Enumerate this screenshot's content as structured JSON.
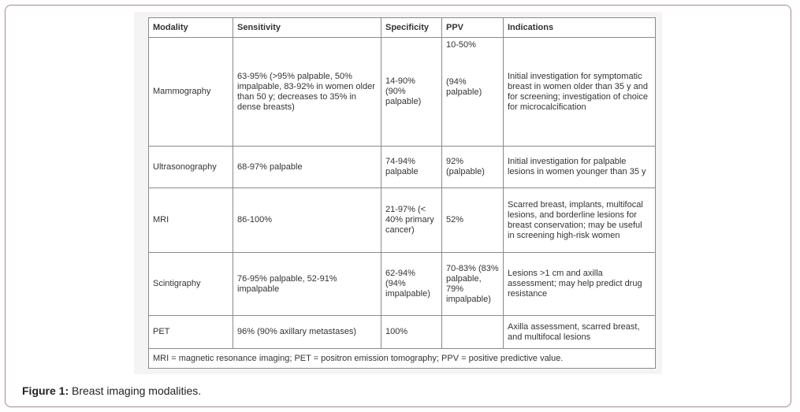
{
  "table": {
    "header": [
      "Modality",
      "Sensitivity",
      "Specificity",
      "PPV",
      "Indications"
    ],
    "rows": [
      [
        "Mammography",
        "63-95% (>95% palpable, 50% impalpable, 83-92% in women older than 50 y; decreases to 35% in dense breasts)",
        "14-90% (90% palpable)",
        [
          "10-50%",
          "(94% palpable)"
        ],
        "Initial investigation for symptomatic breast in women older than 35 y and for screening; investigation of choice for microcalcification"
      ],
      [
        "Ultrasonography",
        "68-97% palpable",
        "74-94% palpable",
        "92% (palpable)",
        "Initial investigation for palpable lesions in women younger than 35 y"
      ],
      [
        "MRI",
        "86-100%",
        "21-97% (< 40% primary cancer)",
        "52%",
        "Scarred breast, implants, multifocal lesions, and borderline lesions for breast conservation; may be useful in screening high-risk women"
      ],
      [
        "Scintigraphy",
        "76-95% palpable, 52-91% impalpable",
        "62-94% (94% impalpable)",
        "70-83% (83% palpable, 79% impalpable)",
        "Lesions >1 cm and axilla assessment; may help predict drug resistance"
      ],
      [
        "PET",
        "96% (90% axillary metastases)",
        "100%",
        "",
        "Axilla assessment, scarred breast, and multifocal lesions"
      ]
    ],
    "footnote": "MRI = magnetic resonance imaging; PET = positron emission tomography; PPV = positive predictive value."
  },
  "caption": {
    "label": "Figure 1:",
    "text": "Breast imaging modalities."
  }
}
